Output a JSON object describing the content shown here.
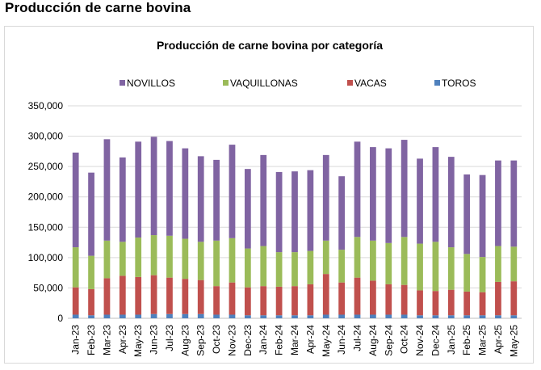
{
  "page": {
    "heading": "Producción de carne bovina"
  },
  "chart_data": {
    "type": "bar",
    "stacked": true,
    "title": "Producción de carne bovina por categoría",
    "xlabel": "",
    "ylabel": "",
    "ylim": [
      0,
      350000
    ],
    "yticks": [
      0,
      50000,
      100000,
      150000,
      200000,
      250000,
      300000,
      350000
    ],
    "ytick_labels": [
      "0",
      "50,000",
      "100,000",
      "150,000",
      "200,000",
      "250,000",
      "300,000",
      "350,000"
    ],
    "grid": true,
    "legend_position": "top",
    "categories": [
      "Jan-23",
      "Feb-23",
      "Mar-23",
      "Apr-23",
      "May-23",
      "Jun-23",
      "Jul-23",
      "Aug-23",
      "Sep-23",
      "Oct-23",
      "Nov-23",
      "Dec-23",
      "Jan-24",
      "Feb-24",
      "Mar-24",
      "Apr-24",
      "May-24",
      "Jun-24",
      "Jul-24",
      "Aug-24",
      "Sep-24",
      "Oct-24",
      "Nov-24",
      "Dec-24",
      "Jan-25",
      "Feb-25",
      "Mar-25",
      "Apr-25",
      "May-25"
    ],
    "series": [
      {
        "name": "TOROS",
        "color": "#4f81bd",
        "values": [
          6000,
          5000,
          6000,
          6000,
          6000,
          7000,
          7000,
          7000,
          7000,
          6000,
          6000,
          5000,
          5000,
          5000,
          5000,
          5000,
          6000,
          6000,
          6000,
          6000,
          6000,
          6000,
          5000,
          5000,
          5000,
          5000,
          5000,
          5000,
          5000
        ]
      },
      {
        "name": "VACAS",
        "color": "#c0504d",
        "values": [
          45000,
          43000,
          60000,
          64000,
          62000,
          64000,
          60000,
          58000,
          56000,
          47000,
          53000,
          46000,
          48000,
          47000,
          48000,
          51000,
          67000,
          53000,
          61000,
          56000,
          50000,
          49000,
          41000,
          40000,
          42000,
          39000,
          38000,
          55000,
          56000
        ]
      },
      {
        "name": "VAQUILLONAS",
        "color": "#9bbb59",
        "values": [
          66000,
          55000,
          62000,
          56000,
          65000,
          66000,
          69000,
          66000,
          63000,
          75000,
          73000,
          64000,
          66000,
          57000,
          56000,
          55000,
          55000,
          54000,
          67000,
          66000,
          68000,
          79000,
          77000,
          81000,
          70000,
          62000,
          58000,
          59000,
          57000
        ]
      },
      {
        "name": "NOVILLOS",
        "color": "#8064a2",
        "values": [
          156000,
          137000,
          167000,
          139000,
          158000,
          162000,
          156000,
          149000,
          141000,
          133000,
          154000,
          131000,
          150000,
          132000,
          133000,
          133000,
          141000,
          121000,
          157000,
          154000,
          156000,
          160000,
          140000,
          156000,
          149000,
          131000,
          135000,
          141000,
          142000
        ]
      }
    ],
    "legend_order": [
      "NOVILLOS",
      "VAQUILLONAS",
      "VACAS",
      "TOROS"
    ]
  }
}
